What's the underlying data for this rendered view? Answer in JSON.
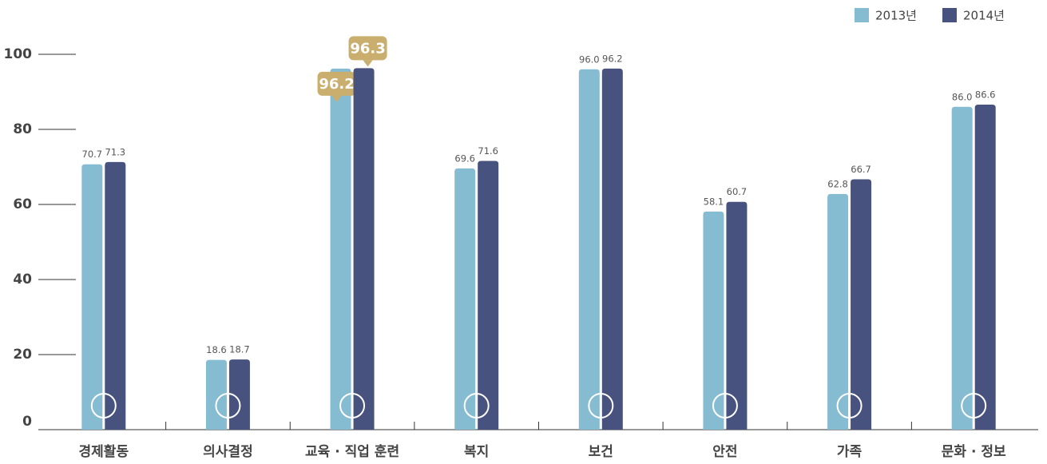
{
  "chart_data": {
    "type": "bar",
    "categories": [
      "경제활동",
      "의사결정",
      "교육 · 직업 훈련",
      "복지",
      "보건",
      "안전",
      "가족",
      "문화 · 정보"
    ],
    "series": [
      {
        "name": "2013년",
        "color": "#86bcd1",
        "values": [
          70.7,
          18.6,
          96.2,
          69.6,
          96.0,
          58.1,
          62.8,
          86.0
        ],
        "value_labels": [
          "70.7",
          "18.6",
          "96.2",
          "69.6",
          "96.0",
          "58.1",
          "62.8",
          "86.0"
        ]
      },
      {
        "name": "2014년",
        "color": "#48527e",
        "values": [
          71.3,
          18.7,
          96.3,
          71.6,
          96.2,
          60.7,
          66.7,
          86.6
        ],
        "value_labels": [
          "71.3",
          "18.7",
          "96.3",
          "71.6",
          "96.2",
          "60.7",
          "66.7",
          "86.6"
        ]
      }
    ],
    "highlight_index": 2,
    "highlight_color": "#c9ae6e",
    "ylim": [
      0,
      100
    ],
    "yticks": [
      0,
      20,
      40,
      60,
      80,
      100
    ],
    "legend": "top-right"
  }
}
